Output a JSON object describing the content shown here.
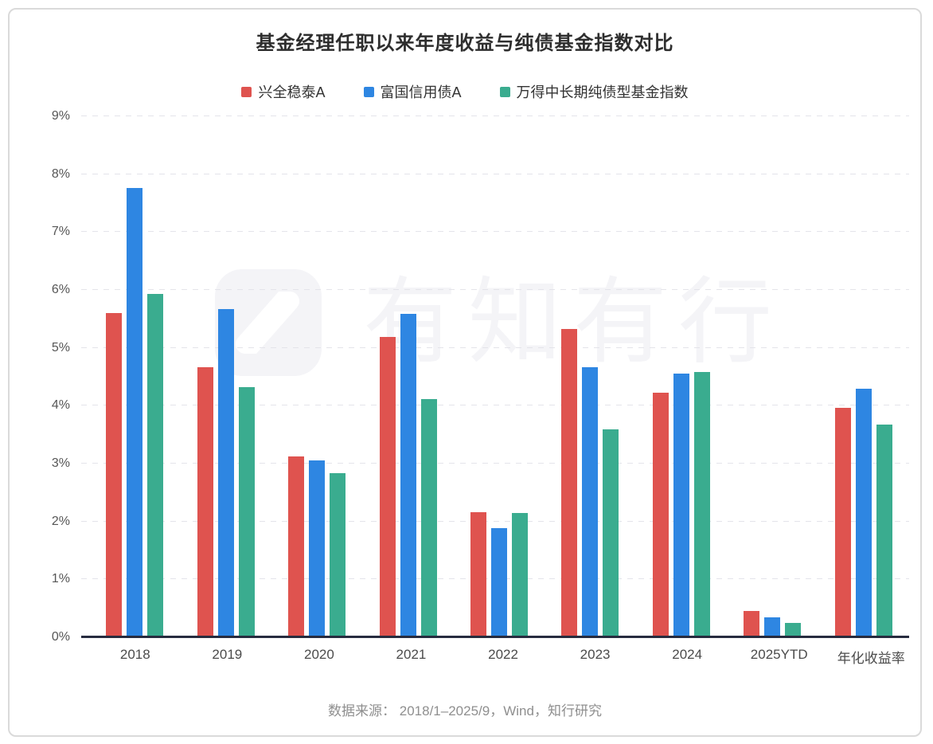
{
  "chart_data": {
    "type": "bar",
    "title": "基金经理任职以来年度收益与纯债基金指数对比",
    "categories": [
      "2018",
      "2019",
      "2020",
      "2021",
      "2022",
      "2023",
      "2024",
      "2025YTD",
      "年化收益率"
    ],
    "series": [
      {
        "name": "兴全稳泰A",
        "color": "#DF534F",
        "values": [
          5.6,
          4.66,
          3.13,
          5.19,
          2.16,
          5.32,
          4.22,
          0.45,
          3.97
        ]
      },
      {
        "name": "富国信用债A",
        "color": "#2E86E2",
        "values": [
          7.76,
          5.67,
          3.05,
          5.59,
          1.89,
          4.66,
          4.56,
          0.35,
          4.29
        ]
      },
      {
        "name": "万得中长期纯债型基金指数",
        "color": "#3AAC8F",
        "values": [
          5.93,
          4.32,
          2.83,
          4.11,
          2.15,
          3.59,
          4.58,
          0.25,
          3.68
        ]
      }
    ],
    "xlabel": "",
    "ylabel": "",
    "ylim": [
      0,
      9
    ],
    "ytick_step": 1,
    "ytick_suffix": "%",
    "grid": "horizontal-dashed",
    "legend_position": "top"
  },
  "watermark": {
    "text": "有知有行",
    "logo": "youzhiyouxing-logo"
  },
  "footer": {
    "source": "数据来源： 2018/1–2025/9，Wind，知行研究"
  },
  "colors": {
    "axis_line": "#272c3f",
    "gridline": "#e4e4ea",
    "card_border": "#dadada",
    "watermark": "#f4f4f7"
  }
}
